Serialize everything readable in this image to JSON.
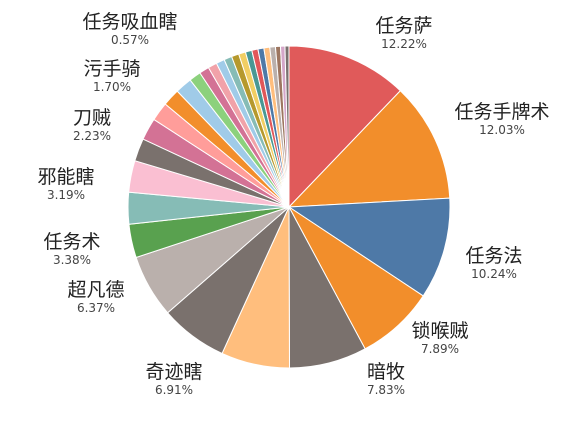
{
  "chart_data": {
    "type": "pie",
    "title": "",
    "slices": [
      {
        "label": "任务萨",
        "pct_text": "12.22%",
        "value": 12.22,
        "color": "#e05a5a",
        "labeled": true
      },
      {
        "label": "任务手牌术",
        "pct_text": "12.03%",
        "value": 12.03,
        "color": "#f28e2b",
        "labeled": true
      },
      {
        "label": "任务法",
        "pct_text": "10.24%",
        "value": 10.24,
        "color": "#4e79a7",
        "labeled": true
      },
      {
        "label": "锁喉贼",
        "pct_text": "7.89%",
        "value": 7.89,
        "color": "#f28e2b",
        "labeled": true
      },
      {
        "label": "暗牧",
        "pct_text": "7.83%",
        "value": 7.83,
        "color": "#7a716d",
        "labeled": true
      },
      {
        "label": "奇迹瞎",
        "pct_text": "6.91%",
        "value": 6.91,
        "color": "#ffbe7d",
        "labeled": true
      },
      {
        "label": "",
        "pct_text": "",
        "value": 6.8,
        "color": "#7a716d",
        "labeled": false
      },
      {
        "label": "超凡德",
        "pct_text": "6.37%",
        "value": 6.37,
        "color": "#bab0ac",
        "labeled": true
      },
      {
        "label": "任务术",
        "pct_text": "3.38%",
        "value": 3.38,
        "color": "#59a14f",
        "labeled": true
      },
      {
        "label": "",
        "pct_text": "",
        "value": 3.2,
        "color": "#86bcb6",
        "labeled": false
      },
      {
        "label": "邪能瞎",
        "pct_text": "3.19%",
        "value": 3.19,
        "color": "#fabfd2",
        "labeled": true
      },
      {
        "label": "",
        "pct_text": "",
        "value": 2.3,
        "color": "#7a716d",
        "labeled": false
      },
      {
        "label": "刀贼",
        "pct_text": "2.23%",
        "value": 2.23,
        "color": "#d37295",
        "labeled": true
      },
      {
        "label": "",
        "pct_text": "",
        "value": 1.9,
        "color": "#ff9d9a",
        "labeled": false
      },
      {
        "label": "",
        "pct_text": "",
        "value": 1.75,
        "color": "#f28e2b",
        "labeled": false
      },
      {
        "label": "污手骑",
        "pct_text": "1.70%",
        "value": 1.7,
        "color": "#a0cbe8",
        "labeled": true
      },
      {
        "label": "",
        "pct_text": "",
        "value": 1.2,
        "color": "#8cd17d",
        "labeled": false
      },
      {
        "label": "",
        "pct_text": "",
        "value": 1.0,
        "color": "#d37295",
        "labeled": false
      },
      {
        "label": "",
        "pct_text": "",
        "value": 0.9,
        "color": "#f1a2a9",
        "labeled": false
      },
      {
        "label": "",
        "pct_text": "",
        "value": 0.85,
        "color": "#a0cbe8",
        "labeled": false
      },
      {
        "label": "",
        "pct_text": "",
        "value": 0.8,
        "color": "#86bcb6",
        "labeled": false
      },
      {
        "label": "",
        "pct_text": "",
        "value": 0.75,
        "color": "#b6992d",
        "labeled": false
      },
      {
        "label": "",
        "pct_text": "",
        "value": 0.7,
        "color": "#f1ce63",
        "labeled": false
      },
      {
        "label": "",
        "pct_text": "",
        "value": 0.65,
        "color": "#499894",
        "labeled": false
      },
      {
        "label": "",
        "pct_text": "",
        "value": 0.62,
        "color": "#e15759",
        "labeled": false
      },
      {
        "label": "",
        "pct_text": "",
        "value": 0.6,
        "color": "#4e79a7",
        "labeled": false
      },
      {
        "label": "",
        "pct_text": "",
        "value": 0.59,
        "color": "#ffbe7d",
        "labeled": false
      },
      {
        "label": "任务吸血瞎",
        "pct_text": "0.57%",
        "value": 0.57,
        "color": "#bab0ac",
        "labeled": true
      },
      {
        "label": "",
        "pct_text": "",
        "value": 0.5,
        "color": "#9d7660",
        "labeled": false
      },
      {
        "label": "",
        "pct_text": "",
        "value": 0.45,
        "color": "#d4a6c8",
        "labeled": false
      },
      {
        "label": "",
        "pct_text": "",
        "value": 0.4,
        "color": "#79706e",
        "labeled": false
      }
    ],
    "legend": "none"
  }
}
